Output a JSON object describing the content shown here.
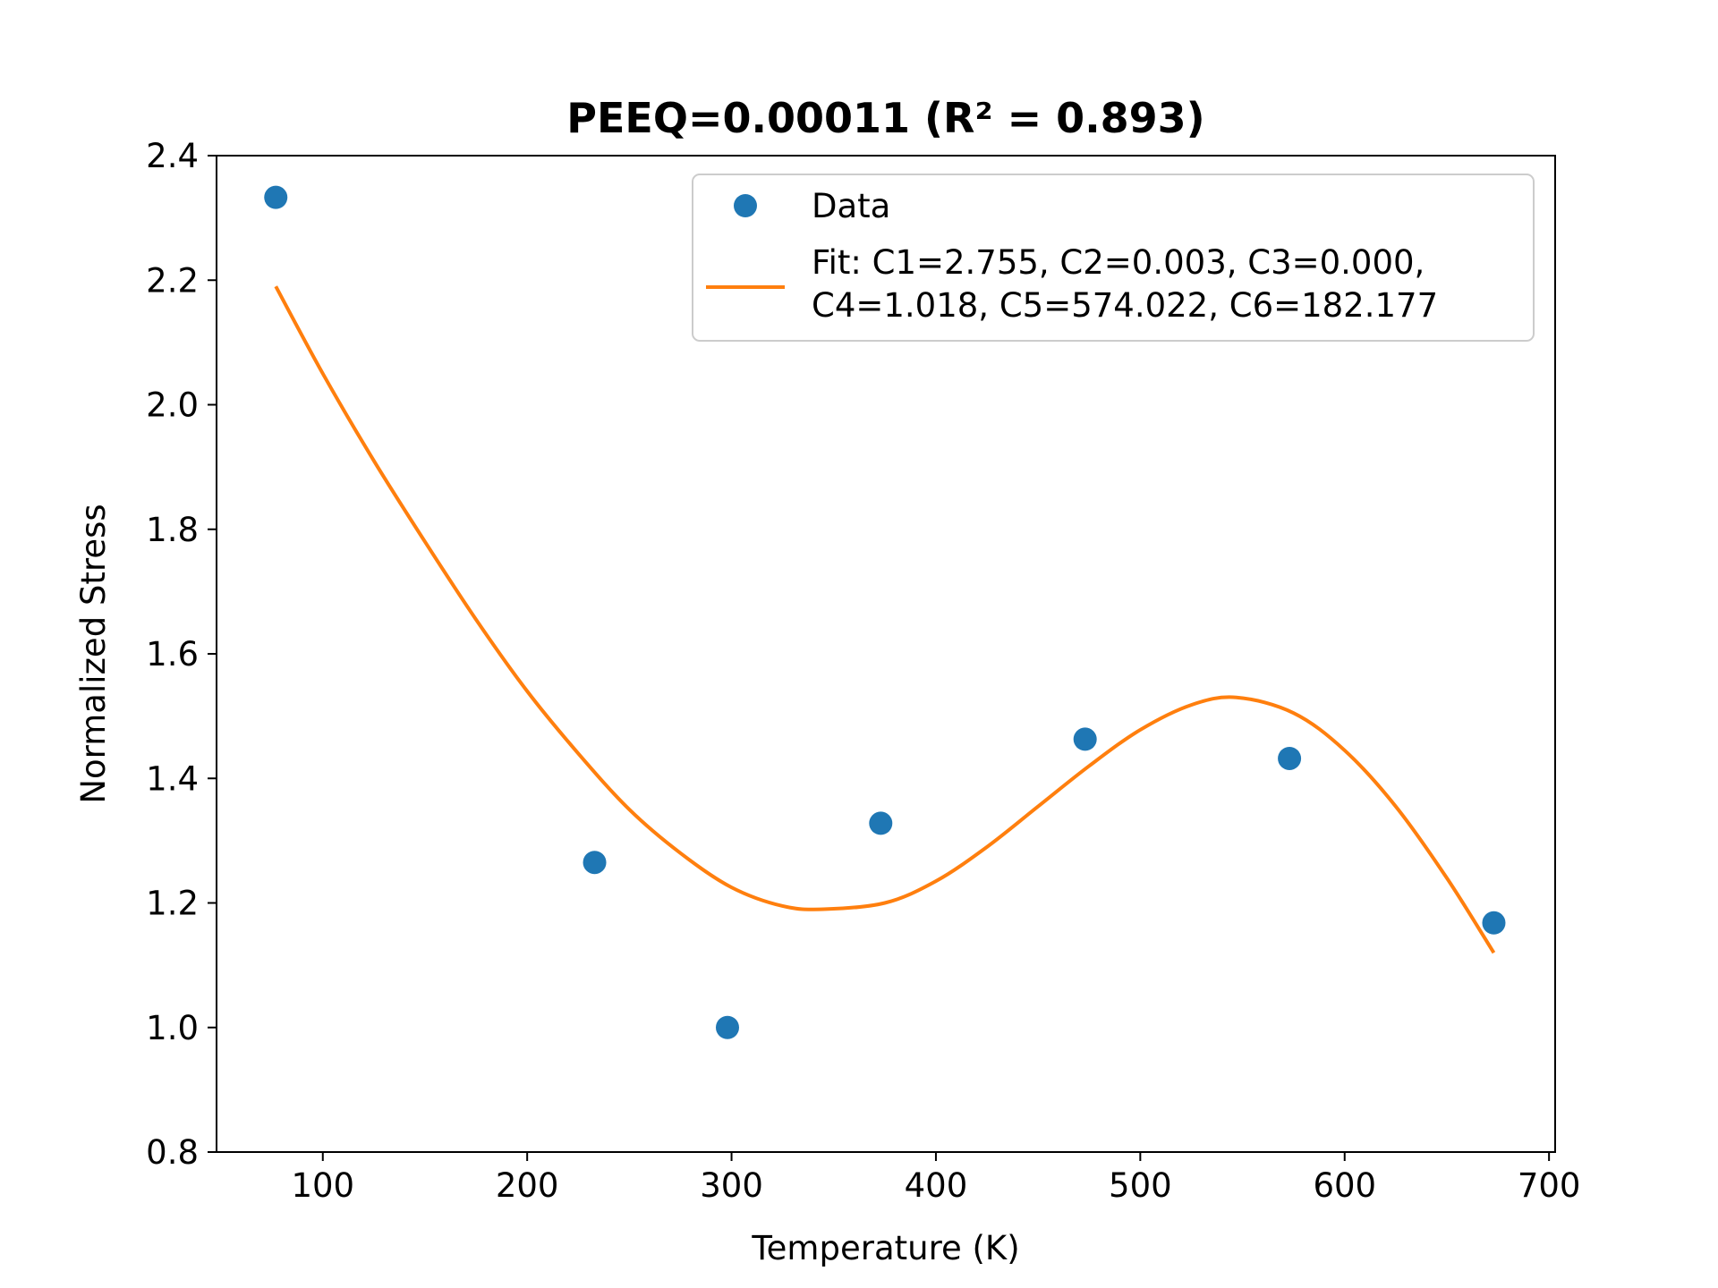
{
  "chart_data": {
    "type": "scatter",
    "title": "PEEQ=0.00011 (R² = 0.893)",
    "xlabel": "Temperature (K)",
    "ylabel": "Normalized Stress",
    "xlim": [
      48,
      703
    ],
    "ylim": [
      0.8,
      2.4
    ],
    "xticks": [
      "100",
      "200",
      "300",
      "400",
      "500",
      "600",
      "700"
    ],
    "yticks": [
      "0.8",
      "1.0",
      "1.2",
      "1.4",
      "1.6",
      "1.8",
      "2.0",
      "2.2",
      "2.4"
    ],
    "grid": false,
    "legend_position": "top-right",
    "series": [
      {
        "name": "Data",
        "kind": "scatter",
        "color": "#1f77b4",
        "x": [
          77,
          233,
          298,
          373,
          473,
          573,
          673
        ],
        "y": [
          2.333,
          1.265,
          1.0,
          1.328,
          1.463,
          1.432,
          1.168
        ]
      },
      {
        "name": "Fit: C1=2.755, C2=0.003, C3=0.000,",
        "name_line2": "C4=1.018, C5=574.022, C6=182.177",
        "kind": "line",
        "color": "#ff7f0e",
        "x": [
          77,
          100,
          125,
          150,
          175,
          200,
          225,
          250,
          275,
          300,
          325,
          345,
          375,
          400,
          425,
          450,
          475,
          500,
          525,
          547,
          575,
          600,
          625,
          650,
          673
        ],
        "y": [
          2.19,
          2.05,
          1.91,
          1.78,
          1.655,
          1.54,
          1.44,
          1.35,
          1.28,
          1.225,
          1.195,
          1.19,
          1.2,
          1.235,
          1.29,
          1.355,
          1.42,
          1.478,
          1.518,
          1.53,
          1.505,
          1.445,
          1.355,
          1.24,
          1.12
        ]
      }
    ]
  }
}
